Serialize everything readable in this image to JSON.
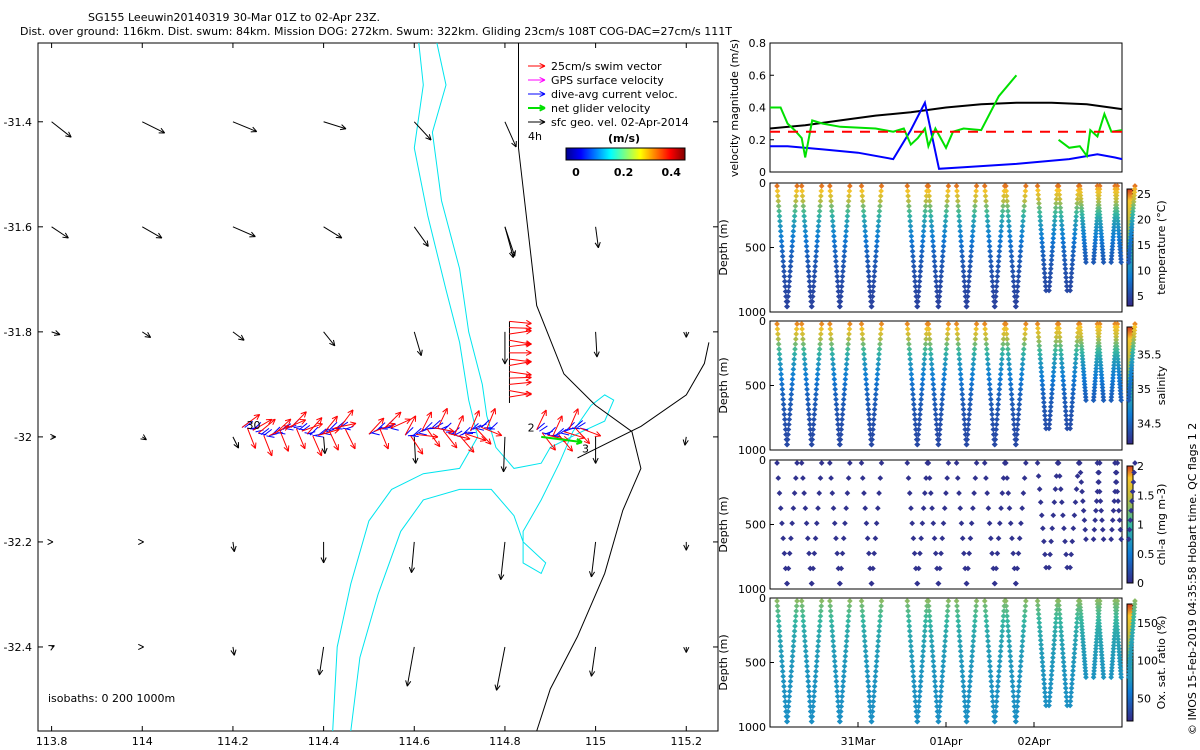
{
  "header": {
    "line1": "SG155 Leeuwin20140319 30-Mar 01Z to 02-Apr 23Z.",
    "line2": "Dist. over ground: 116km. Dist. swum: 84km. Mission DOG: 272km. Swum: 322km. Gliding 23cm/s 108T COG-DAC=27cm/s 111T"
  },
  "watermark": "© IMOS 15-Feb-2019 04:35:58 Hobart time. QC flags 1  2",
  "colors": {
    "swim": "#ff0000",
    "gps": "#ff00ff",
    "dac": "#0000ff",
    "net": "#00e000",
    "geo": "#000000",
    "coast": "#000000",
    "isobath200": "#00e5ee"
  },
  "chart_data": [
    {
      "type": "scatter",
      "name": "map",
      "xlim": [
        113.77,
        115.27
      ],
      "ylim": [
        -32.56,
        -31.25
      ],
      "xticks": [
        "113.8",
        "114",
        "114.2",
        "114.4",
        "114.6",
        "114.8",
        "115",
        "115.2"
      ],
      "yticks": [
        "-31.4",
        "-31.6",
        "-31.8",
        "-32",
        "-32.2",
        "-32.4"
      ],
      "legend": [
        "25cm/s swim vector",
        "GPS surface velocity",
        "dive-avg current veloc.",
        "net glider velocity",
        "sfc geo. vel. 02-Apr-2014",
        "4h"
      ],
      "colorbar": {
        "label": "(m/s)",
        "ticks": [
          "0",
          "0.2",
          "0.4"
        ],
        "range": [
          0,
          0.5
        ]
      },
      "isobaths_label": "isobaths: 0   200  1000m",
      "track_labels": [
        "30",
        "2",
        "3"
      ],
      "geo_vectors": [
        {
          "lon": 113.8,
          "lat": -31.4,
          "u": 0.14,
          "v": -0.11
        },
        {
          "lon": 114.0,
          "lat": -31.4,
          "u": 0.16,
          "v": -0.08
        },
        {
          "lon": 114.2,
          "lat": -31.4,
          "u": 0.17,
          "v": -0.07
        },
        {
          "lon": 114.4,
          "lat": -31.4,
          "u": 0.16,
          "v": -0.05
        },
        {
          "lon": 114.6,
          "lat": -31.4,
          "u": 0.12,
          "v": -0.13
        },
        {
          "lon": 114.8,
          "lat": -31.4,
          "u": 0.08,
          "v": -0.18
        },
        {
          "lon": 114.8,
          "lat": -31.6,
          "u": 0.06,
          "v": -0.22
        },
        {
          "lon": 113.8,
          "lat": -31.6,
          "u": 0.12,
          "v": -0.08
        },
        {
          "lon": 114.0,
          "lat": -31.6,
          "u": 0.14,
          "v": -0.08
        },
        {
          "lon": 114.2,
          "lat": -31.6,
          "u": 0.16,
          "v": -0.07
        },
        {
          "lon": 114.4,
          "lat": -31.6,
          "u": 0.13,
          "v": -0.08
        },
        {
          "lon": 114.6,
          "lat": -31.6,
          "u": 0.1,
          "v": -0.14
        },
        {
          "lon": 114.8,
          "lat": -31.6,
          "u": 0.07,
          "v": -0.21
        },
        {
          "lon": 115.0,
          "lat": -31.6,
          "u": 0.02,
          "v": -0.15
        },
        {
          "lon": 113.8,
          "lat": -31.8,
          "u": 0.06,
          "v": -0.02
        },
        {
          "lon": 114.0,
          "lat": -31.8,
          "u": 0.06,
          "v": -0.04
        },
        {
          "lon": 114.2,
          "lat": -31.8,
          "u": 0.08,
          "v": -0.06
        },
        {
          "lon": 114.4,
          "lat": -31.8,
          "u": 0.08,
          "v": -0.1
        },
        {
          "lon": 114.6,
          "lat": -31.8,
          "u": 0.05,
          "v": -0.17
        },
        {
          "lon": 114.8,
          "lat": -31.8,
          "u": 0.0,
          "v": -0.23
        },
        {
          "lon": 115.0,
          "lat": -31.8,
          "u": 0.01,
          "v": -0.18
        },
        {
          "lon": 115.2,
          "lat": -31.8,
          "u": 0.0,
          "v": -0.04
        },
        {
          "lon": 113.8,
          "lat": -32.0,
          "u": 0.03,
          "v": 0.0
        },
        {
          "lon": 114.0,
          "lat": -32.0,
          "u": 0.03,
          "v": -0.02
        },
        {
          "lon": 114.2,
          "lat": -32.0,
          "u": 0.04,
          "v": -0.08
        },
        {
          "lon": 114.4,
          "lat": -32.0,
          "u": 0.01,
          "v": -0.12
        },
        {
          "lon": 114.6,
          "lat": -32.0,
          "u": 0.01,
          "v": -0.19
        },
        {
          "lon": 114.8,
          "lat": -32.0,
          "u": -0.01,
          "v": -0.25
        },
        {
          "lon": 115.0,
          "lat": -32.0,
          "u": 0.0,
          "v": -0.19
        },
        {
          "lon": 115.2,
          "lat": -32.0,
          "u": -0.01,
          "v": -0.06
        },
        {
          "lon": 113.8,
          "lat": -32.2,
          "u": 0.01,
          "v": 0.0
        },
        {
          "lon": 114.0,
          "lat": -32.2,
          "u": 0.01,
          "v": 0.0
        },
        {
          "lon": 114.2,
          "lat": -32.2,
          "u": 0.01,
          "v": -0.07
        },
        {
          "lon": 114.4,
          "lat": -32.2,
          "u": 0.0,
          "v": -0.15
        },
        {
          "lon": 114.6,
          "lat": -32.2,
          "u": -0.02,
          "v": -0.22
        },
        {
          "lon": 114.8,
          "lat": -32.2,
          "u": -0.03,
          "v": -0.27
        },
        {
          "lon": 115.0,
          "lat": -32.2,
          "u": -0.03,
          "v": -0.25
        },
        {
          "lon": 115.2,
          "lat": -32.2,
          "u": 0.0,
          "v": -0.06
        },
        {
          "lon": 113.8,
          "lat": -32.4,
          "u": 0.02,
          "v": 0.01
        },
        {
          "lon": 114.0,
          "lat": -32.4,
          "u": 0.01,
          "v": 0.0
        },
        {
          "lon": 114.2,
          "lat": -32.4,
          "u": 0.01,
          "v": -0.06
        },
        {
          "lon": 114.4,
          "lat": -32.4,
          "u": -0.03,
          "v": -0.2
        },
        {
          "lon": 114.6,
          "lat": -32.4,
          "u": -0.05,
          "v": -0.28
        },
        {
          "lon": 114.8,
          "lat": -32.4,
          "u": -0.06,
          "v": -0.31
        },
        {
          "lon": 115.0,
          "lat": -32.4,
          "u": -0.03,
          "v": -0.21
        },
        {
          "lon": 115.2,
          "lat": -32.4,
          "u": 0.0,
          "v": -0.04
        }
      ],
      "coast_0m": [
        [
          114.83,
          -31.25
        ],
        [
          114.83,
          -31.45
        ],
        [
          114.85,
          -31.6
        ],
        [
          114.87,
          -31.75
        ],
        [
          114.93,
          -31.88
        ],
        [
          115.0,
          -31.94
        ],
        [
          115.08,
          -31.99
        ],
        [
          115.1,
          -32.06
        ],
        [
          115.06,
          -32.14
        ],
        [
          115.02,
          -32.26
        ],
        [
          114.96,
          -32.38
        ],
        [
          114.9,
          -32.48
        ],
        [
          114.87,
          -32.56
        ]
      ],
      "coast_0m_b": [
        [
          114.96,
          -32.04
        ],
        [
          115.1,
          -31.98
        ],
        [
          115.2,
          -31.92
        ],
        [
          115.24,
          -31.86
        ],
        [
          115.25,
          -31.82
        ]
      ],
      "iso200": [
        [
          114.65,
          -31.25
        ],
        [
          114.67,
          -31.33
        ],
        [
          114.64,
          -31.42
        ],
        [
          114.66,
          -31.55
        ],
        [
          114.7,
          -31.68
        ],
        [
          114.72,
          -31.8
        ],
        [
          114.75,
          -31.9
        ],
        [
          114.76,
          -31.96
        ],
        [
          114.78,
          -32.02
        ],
        [
          114.82,
          -32.06
        ],
        [
          114.88,
          -32.05
        ],
        [
          114.9,
          -32.02
        ],
        [
          114.97,
          -31.99
        ],
        [
          115.02,
          -31.97
        ],
        [
          115.04,
          -31.93
        ],
        [
          115.02,
          -31.92
        ],
        [
          114.99,
          -31.94
        ],
        [
          114.95,
          -31.99
        ],
        [
          114.92,
          -32.05
        ],
        [
          114.88,
          -32.12
        ],
        [
          114.84,
          -32.18
        ],
        [
          114.84,
          -32.24
        ],
        [
          114.88,
          -32.26
        ],
        [
          114.89,
          -32.24
        ],
        [
          114.84,
          -32.2
        ],
        [
          114.82,
          -32.15
        ],
        [
          114.77,
          -32.1
        ],
        [
          114.7,
          -32.1
        ],
        [
          114.62,
          -32.12
        ],
        [
          114.57,
          -32.18
        ],
        [
          114.52,
          -32.3
        ],
        [
          114.48,
          -32.42
        ],
        [
          114.46,
          -32.56
        ]
      ],
      "iso1000": [
        [
          114.61,
          -31.25
        ],
        [
          114.62,
          -31.33
        ],
        [
          114.6,
          -31.45
        ],
        [
          114.63,
          -31.58
        ],
        [
          114.67,
          -31.72
        ],
        [
          114.7,
          -31.82
        ],
        [
          114.72,
          -31.93
        ],
        [
          114.74,
          -32.0
        ],
        [
          114.7,
          -32.06
        ],
        [
          114.62,
          -32.07
        ],
        [
          114.55,
          -32.1
        ],
        [
          114.5,
          -32.16
        ],
        [
          114.46,
          -32.28
        ],
        [
          114.43,
          -32.4
        ],
        [
          114.42,
          -32.56
        ]
      ]
    },
    {
      "type": "line",
      "name": "velocity",
      "ylabel": "velocity magnitude (m/s)",
      "ylim": [
        0,
        0.8
      ],
      "yticks": [
        "0",
        "0.2",
        "0.4",
        "0.6",
        "0.8"
      ],
      "series": [
        {
          "name": "sfc geo",
          "color": "#000000",
          "points": [
            [
              0,
              0.27
            ],
            [
              0.1,
              0.29
            ],
            [
              0.2,
              0.32
            ],
            [
              0.3,
              0.35
            ],
            [
              0.4,
              0.37
            ],
            [
              0.5,
              0.4
            ],
            [
              0.6,
              0.42
            ],
            [
              0.7,
              0.43
            ],
            [
              0.8,
              0.43
            ],
            [
              0.9,
              0.42
            ],
            [
              1,
              0.39
            ]
          ]
        },
        {
          "name": "dac",
          "color": "#0000ff",
          "points": [
            [
              0,
              0.16
            ],
            [
              0.05,
              0.16
            ],
            [
              0.15,
              0.14
            ],
            [
              0.25,
              0.12
            ],
            [
              0.35,
              0.08
            ],
            [
              0.4,
              0.26
            ],
            [
              0.44,
              0.43
            ],
            [
              0.48,
              0.02
            ],
            [
              0.55,
              0.03
            ],
            [
              0.7,
              0.05
            ],
            [
              0.85,
              0.08
            ],
            [
              0.93,
              0.11
            ],
            [
              0.98,
              0.09
            ],
            [
              1,
              0.08
            ]
          ]
        },
        {
          "name": "net",
          "color": "#00e000",
          "points": [
            [
              0,
              0.4
            ],
            [
              0.03,
              0.4
            ],
            [
              0.05,
              0.3
            ],
            [
              0.07,
              0.26
            ],
            [
              0.09,
              0.21
            ],
            [
              0.1,
              0.09
            ],
            [
              0.12,
              0.32
            ],
            [
              0.15,
              0.3
            ],
            [
              0.2,
              0.28
            ],
            [
              0.3,
              0.27
            ],
            [
              0.35,
              0.25
            ],
            [
              0.38,
              0.27
            ],
            [
              0.4,
              0.17
            ],
            [
              0.42,
              0.21
            ],
            [
              0.44,
              0.27
            ],
            [
              0.45,
              0.16
            ],
            [
              0.47,
              0.27
            ],
            [
              0.5,
              0.15
            ],
            [
              0.52,
              0.25
            ],
            [
              0.55,
              0.27
            ],
            [
              0.6,
              0.26
            ],
            [
              0.65,
              0.47
            ],
            [
              0.7,
              0.6
            ],
            [
              0.78,
              null
            ],
            [
              0.82,
              0.2
            ],
            [
              0.85,
              0.15
            ],
            [
              0.88,
              0.16
            ],
            [
              0.9,
              0.1
            ],
            [
              0.91,
              0.26
            ],
            [
              0.93,
              0.22
            ],
            [
              0.95,
              0.36
            ],
            [
              0.97,
              0.25
            ],
            [
              1,
              0.26
            ]
          ]
        },
        {
          "name": "mean",
          "color": "#ff0000",
          "dashed": true,
          "points": [
            [
              0,
              0.25
            ],
            [
              1,
              0.25
            ]
          ]
        }
      ]
    },
    {
      "type": "scatter",
      "name": "temperature",
      "ylabel": "Depth (m)",
      "cblabel": "temperature (°C)",
      "yticks": [
        "0",
        "500",
        "1000"
      ],
      "cbticks": [
        "5",
        "10",
        "15",
        "20",
        "25"
      ],
      "cbrange": [
        3,
        26
      ],
      "surface": 24,
      "bottom": 4
    },
    {
      "type": "scatter",
      "name": "salinity",
      "ylabel": "Depth (m)",
      "cblabel": "salinity",
      "yticks": [
        "0",
        "500",
        "1000"
      ],
      "cbticks": [
        "34.5",
        "35",
        "35.5"
      ],
      "cbrange": [
        34.2,
        35.9
      ],
      "surface": 35.7,
      "bottom": 34.3
    },
    {
      "type": "scatter",
      "name": "chl-a",
      "ylabel": "Depth (m)",
      "cblabel": "chl-a (mg m-3)",
      "yticks": [
        "0",
        "500",
        "1000"
      ],
      "cbticks": [
        "0",
        "0.5",
        "1",
        "1.5",
        "2"
      ],
      "cbrange": [
        0,
        2
      ],
      "surface": 0.3,
      "bottom": 0
    },
    {
      "type": "scatter",
      "name": "oxygen",
      "ylabel": "Depth (m)",
      "cblabel": "Ox. sat. ratio (%)",
      "yticks": [
        "0",
        "500",
        "1000"
      ],
      "cbticks": [
        "50",
        "100",
        "150"
      ],
      "cbrange": [
        20,
        175
      ],
      "surface": 100,
      "bottom": 60
    },
    {
      "type": "line",
      "name": "time-axis",
      "xticks": [
        "31Mar",
        "01Apr",
        "02Apr"
      ]
    }
  ]
}
